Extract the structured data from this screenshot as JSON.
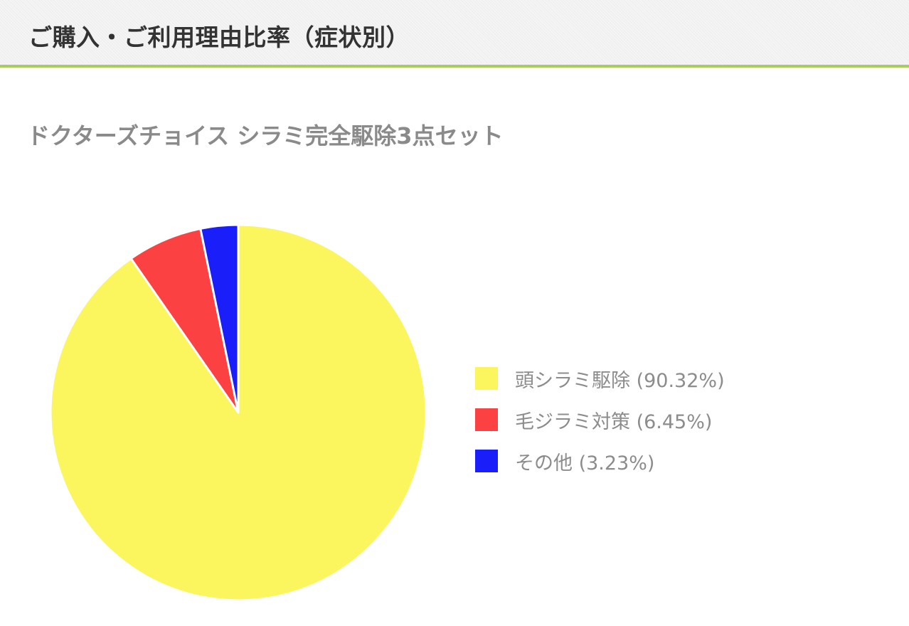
{
  "header": {
    "title": "ご購入・ご利用理由比率（症状別）"
  },
  "product": {
    "title": "ドクターズチョイス シラミ完全駆除3点セット"
  },
  "chart_data": {
    "type": "pie",
    "categories": [
      "頭シラミ駆除",
      "毛ジラミ対策",
      "その他"
    ],
    "values": [
      90.32,
      6.45,
      3.23
    ],
    "colors": [
      "#fbf55e",
      "#fb4141",
      "#1a1ef8"
    ],
    "legend_labels": [
      "頭シラミ駆除 (90.32%)",
      "毛ジラミ対策 (6.45%)",
      "その他 (3.23%)"
    ],
    "legend_position": "right",
    "start_angle": "top",
    "direction": "clockwise"
  }
}
